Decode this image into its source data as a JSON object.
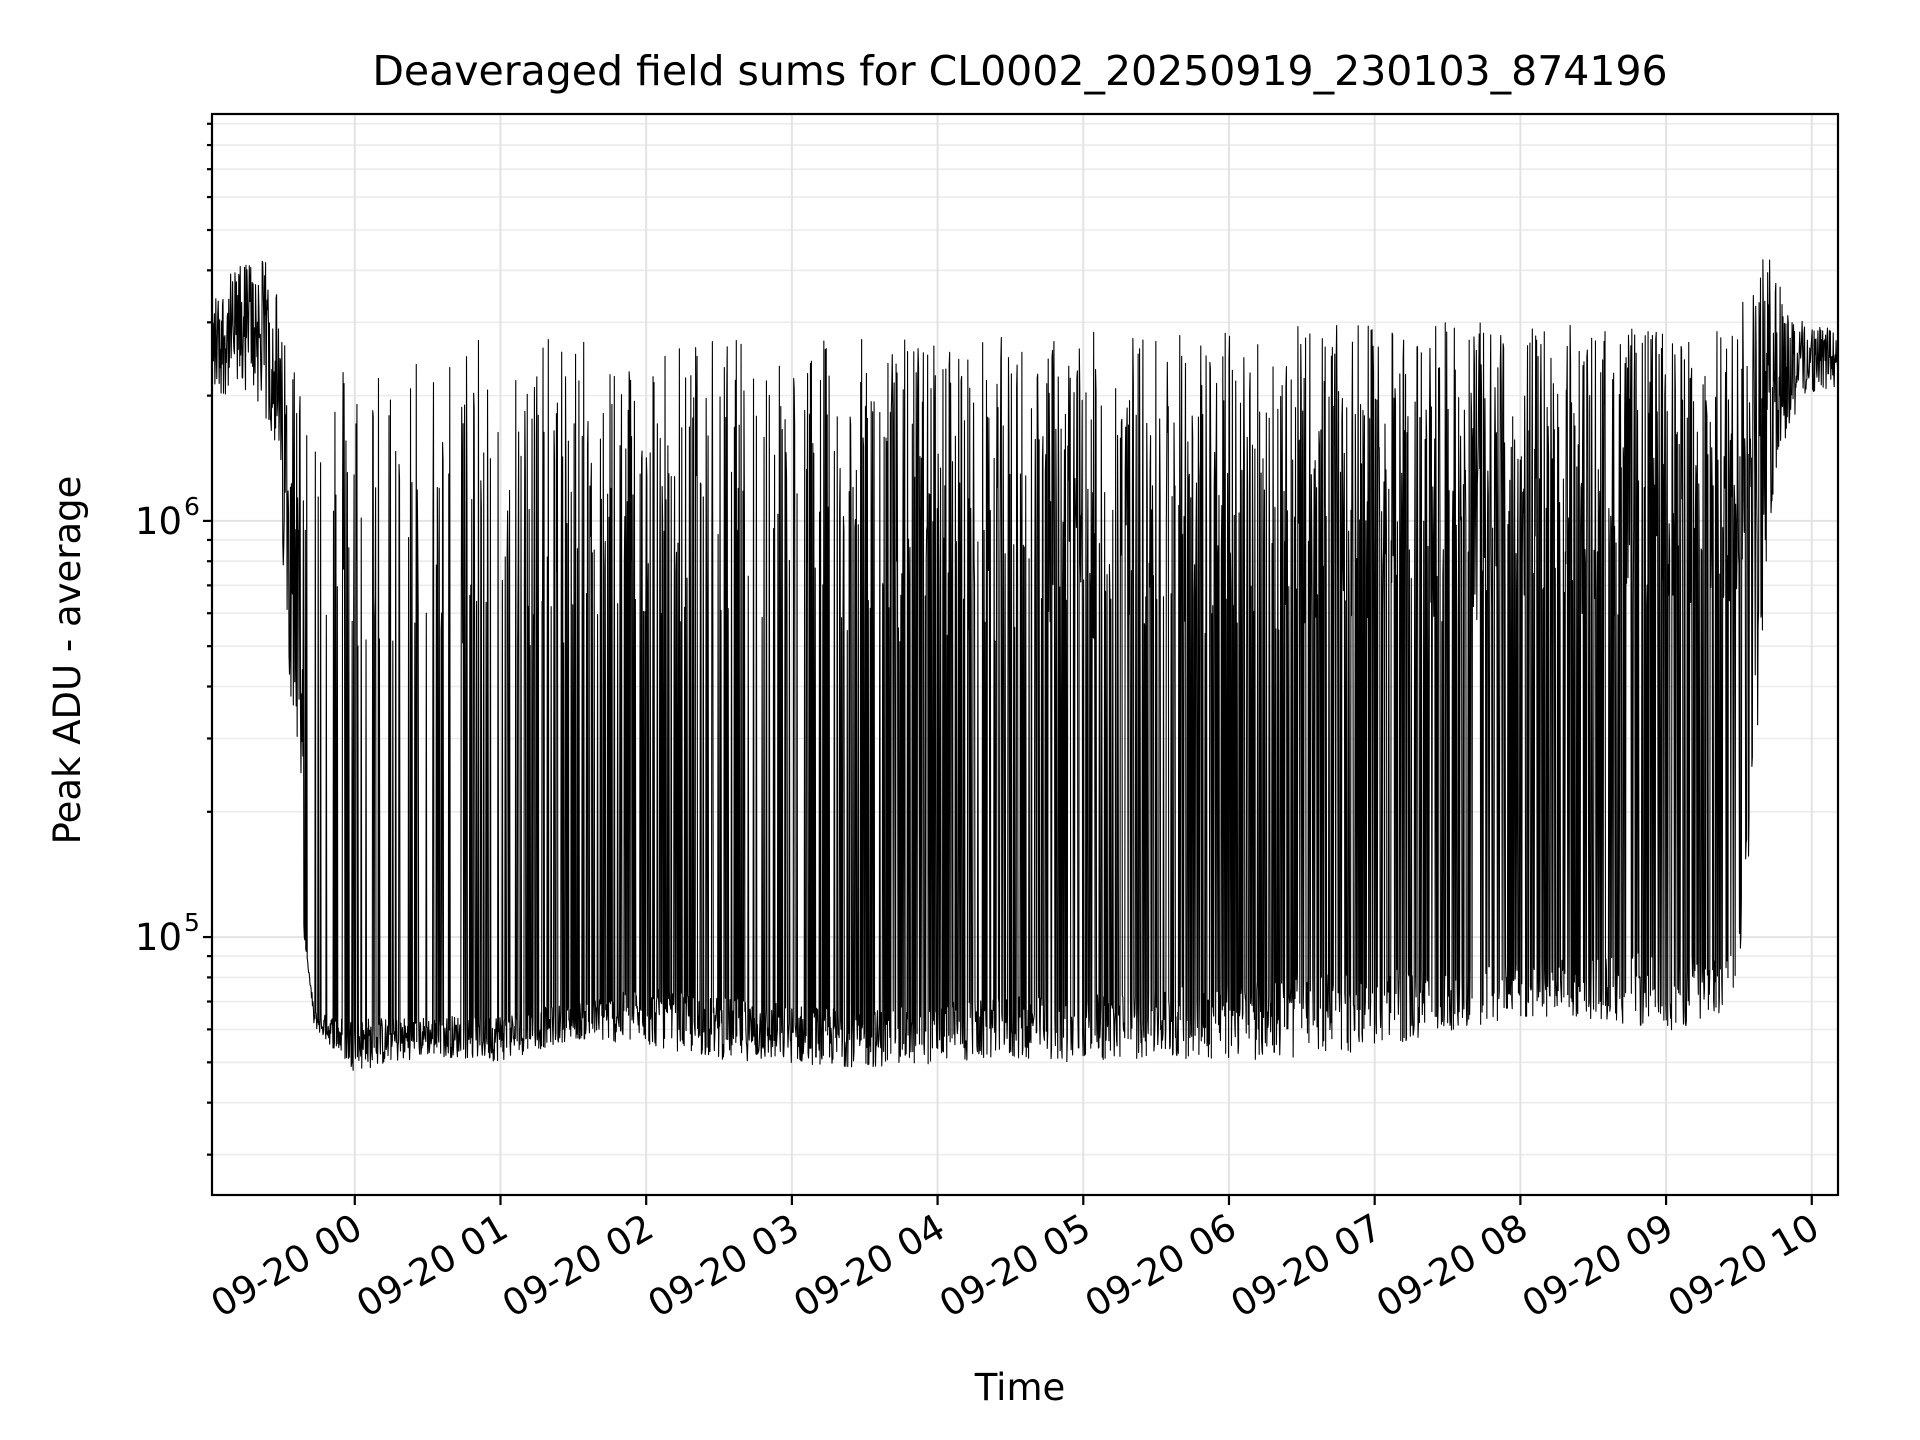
{
  "chart_data": {
    "type": "line",
    "title": "Deaveraged field sums for CL0002_20250919_230103_874196",
    "xlabel": "Time",
    "ylabel": "Peak ADU - average",
    "yscale": "log",
    "ylim": [
      24000,
      9500000
    ],
    "xlim_hours": [
      -0.98,
      10.18
    ],
    "grid": true,
    "x_tick_labels": [
      "09-20 00",
      "09-20 01",
      "09-20 02",
      "09-20 03",
      "09-20 04",
      "09-20 05",
      "09-20 06",
      "09-20 07",
      "09-20 08",
      "09-20 09",
      "09-20 10"
    ],
    "x_tick_hours": [
      0,
      1,
      2,
      3,
      4,
      5,
      6,
      7,
      8,
      9,
      10
    ],
    "y_major_ticks": [
      {
        "value": 100000,
        "base": "10",
        "exp": "5"
      },
      {
        "value": 1000000,
        "base": "10",
        "exp": "6"
      }
    ],
    "series": [
      {
        "name": "Peak ADU - average",
        "color": "#000000",
        "x_hours": [
          -0.98,
          -0.7,
          -0.55,
          -0.5,
          -0.42,
          -0.36,
          -0.3,
          -0.28,
          -0.2,
          -0.1,
          0.0,
          0.5,
          1.0,
          1.5,
          2.0,
          2.5,
          3.0,
          3.5,
          4.0,
          4.5,
          5.0,
          5.5,
          6.0,
          6.5,
          7.0,
          7.5,
          8.0,
          8.5,
          9.0,
          9.4,
          9.5,
          9.55,
          9.6,
          9.65,
          9.7,
          9.8,
          9.95,
          10.18
        ],
        "envelope_low": [
          2000000,
          2000000,
          1500000,
          800000,
          300000,
          120000,
          70000,
          60000,
          55000,
          50000,
          45000,
          50000,
          48000,
          55000,
          52000,
          48000,
          47000,
          46000,
          47000,
          48000,
          47000,
          48000,
          47000,
          47000,
          50000,
          55000,
          60000,
          60000,
          55000,
          60000,
          80000,
          120000,
          200000,
          400000,
          900000,
          1500000,
          2000000,
          2100000
        ],
        "envelope_high": [
          3500000,
          4500000,
          4000000,
          2800000,
          2800000,
          2700000,
          2600000,
          2500000,
          2500000,
          2600000,
          2700000,
          2700000,
          2750000,
          2750000,
          2750000,
          2800000,
          2750000,
          2750000,
          2800000,
          2800000,
          2850000,
          2900000,
          2900000,
          2950000,
          2950000,
          3000000,
          3000000,
          3000000,
          2900000,
          2900000,
          3200000,
          3600000,
          4200000,
          4600000,
          4400000,
          3600000,
          3000000,
          2900000
        ],
        "baseline": [
          2600000,
          2400000,
          1800000,
          1000000,
          350000,
          110000,
          75000,
          65000,
          62000,
          60000,
          58000,
          60000,
          60000,
          65000,
          68000,
          64000,
          62000,
          60000,
          62000,
          64000,
          64000,
          66000,
          68000,
          70000,
          72000,
          75000,
          78000,
          80000,
          80000,
          82000,
          100000,
          160000,
          300000,
          700000,
          1400000,
          2100000,
          2300000,
          2300000
        ]
      }
    ]
  }
}
